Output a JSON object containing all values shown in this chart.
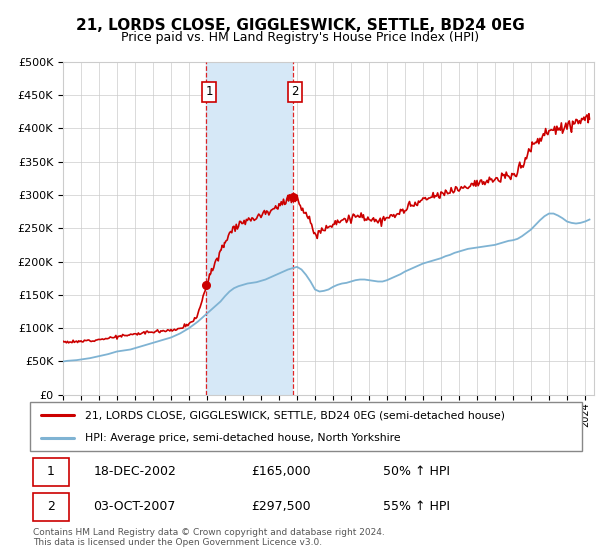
{
  "title": "21, LORDS CLOSE, GIGGLESWICK, SETTLE, BD24 0EG",
  "subtitle": "Price paid vs. HM Land Registry's House Price Index (HPI)",
  "ylabel_ticks": [
    "£0",
    "£50K",
    "£100K",
    "£150K",
    "£200K",
    "£250K",
    "£300K",
    "£350K",
    "£400K",
    "£450K",
    "£500K"
  ],
  "ytick_vals": [
    0,
    50000,
    100000,
    150000,
    200000,
    250000,
    300000,
    350000,
    400000,
    450000,
    500000
  ],
  "ylim": [
    0,
    500000
  ],
  "xlim_start": 1995.0,
  "xlim_end": 2024.5,
  "purchase1_date": 2002.96,
  "purchase1_price": 165000,
  "purchase1_label": "1",
  "purchase2_date": 2007.75,
  "purchase2_price": 297500,
  "purchase2_label": "2",
  "shaded_color": "#d6e8f7",
  "red_line_color": "#cc0000",
  "blue_line_color": "#7fb3d3",
  "legend1_label": "21, LORDS CLOSE, GIGGLESWICK, SETTLE, BD24 0EG (semi-detached house)",
  "legend2_label": "HPI: Average price, semi-detached house, North Yorkshire",
  "table_row1": [
    "1",
    "18-DEC-2002",
    "£165,000",
    "50% ↑ HPI"
  ],
  "table_row2": [
    "2",
    "03-OCT-2007",
    "£297,500",
    "55% ↑ HPI"
  ],
  "footer": "Contains HM Land Registry data © Crown copyright and database right 2024.\nThis data is licensed under the Open Government Licence v3.0.",
  "grid_color": "#cccccc",
  "background_color": "#ffffff",
  "title_fontsize": 11,
  "subtitle_fontsize": 9,
  "tick_fontsize": 8
}
